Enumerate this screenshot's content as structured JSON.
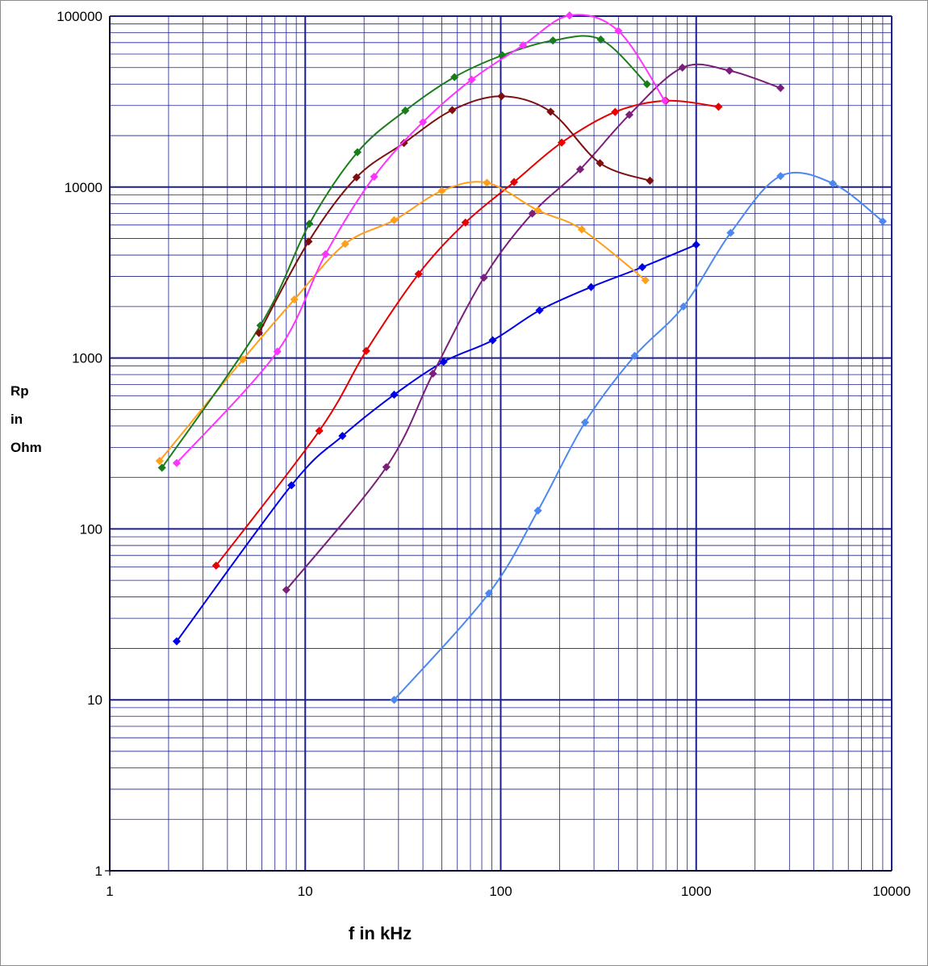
{
  "chart_data": {
    "type": "scatter",
    "xlabel": "f in kHz",
    "ylabel": [
      "Rp",
      "in",
      "Ohm"
    ],
    "xscale": "log",
    "yscale": "log",
    "xlim": [
      1,
      10000
    ],
    "ylim": [
      1,
      100000
    ],
    "x_ticks": [
      "1",
      "10",
      "100",
      "1000",
      "10000"
    ],
    "y_ticks": [
      "1",
      "10",
      "100",
      "1000",
      "10000",
      "100000"
    ],
    "grid": "major and minor",
    "grid_color": "#1c1f8c",
    "legend": "none",
    "series": [
      {
        "color": "#0000e6",
        "points": [
          [
            2.2,
            22
          ],
          [
            8.5,
            180
          ],
          [
            15.5,
            350
          ],
          [
            28.5,
            610
          ],
          [
            51,
            950
          ],
          [
            91,
            1270
          ],
          [
            158,
            1900
          ],
          [
            290,
            2600
          ],
          [
            530,
            3400
          ],
          [
            1000,
            4600
          ]
        ]
      },
      {
        "color": "#e60000",
        "points": [
          [
            3.5,
            61
          ],
          [
            11.8,
            375
          ],
          [
            20.5,
            1100
          ],
          [
            38,
            3100
          ],
          [
            66,
            6200
          ],
          [
            117,
            10700
          ],
          [
            205,
            18200
          ],
          [
            385,
            27500
          ],
          [
            700,
            32000
          ],
          [
            1300,
            29500
          ]
        ]
      },
      {
        "color": "#7b1f7b",
        "points": [
          [
            8,
            44
          ],
          [
            26,
            230
          ],
          [
            45,
            810
          ],
          [
            82,
            2950
          ],
          [
            145,
            7000
          ],
          [
            255,
            12700
          ],
          [
            455,
            26500
          ],
          [
            850,
            50000
          ],
          [
            1480,
            48000
          ],
          [
            2700,
            38000
          ]
        ]
      },
      {
        "color": "#ff9f1a",
        "points": [
          [
            1.8,
            250
          ],
          [
            4.8,
            980
          ],
          [
            8.8,
            2200
          ],
          [
            16,
            4650
          ],
          [
            28.5,
            6400
          ],
          [
            50,
            9500
          ],
          [
            85,
            10600
          ],
          [
            155,
            7300
          ],
          [
            260,
            5650
          ],
          [
            550,
            2850
          ]
        ]
      },
      {
        "color": "#1a7d1a",
        "points": [
          [
            1.85,
            228
          ],
          [
            5.9,
            1550
          ],
          [
            10.5,
            6100
          ],
          [
            18.5,
            16000
          ],
          [
            32.5,
            28000
          ],
          [
            58,
            44000
          ],
          [
            102,
            59000
          ],
          [
            185,
            72000
          ],
          [
            325,
            73000
          ],
          [
            560,
            40000
          ]
        ]
      },
      {
        "color": "#7d0f0f",
        "points": [
          [
            5.8,
            1400
          ],
          [
            10.4,
            4800
          ],
          [
            18.3,
            11400
          ],
          [
            32,
            18100
          ],
          [
            56.5,
            28200
          ],
          [
            101,
            34000
          ],
          [
            180,
            27600
          ],
          [
            322,
            13800
          ],
          [
            580,
            10900
          ]
        ]
      },
      {
        "color": "#ff33ff",
        "points": [
          [
            2.2,
            243
          ],
          [
            7.2,
            1090
          ],
          [
            12.7,
            4050
          ],
          [
            22.5,
            11500
          ],
          [
            40,
            24000
          ],
          [
            71,
            42500
          ],
          [
            130,
            67500
          ],
          [
            225,
            101000
          ],
          [
            400,
            82000
          ],
          [
            690,
            32000
          ]
        ]
      },
      {
        "color": "#4d88f0",
        "points": [
          [
            28.5,
            10
          ],
          [
            87,
            42
          ],
          [
            155,
            128
          ],
          [
            270,
            420
          ],
          [
            485,
            1030
          ],
          [
            860,
            2000
          ],
          [
            1500,
            5400
          ],
          [
            2700,
            11600
          ],
          [
            5000,
            10500
          ],
          [
            9000,
            6300
          ]
        ]
      }
    ]
  }
}
